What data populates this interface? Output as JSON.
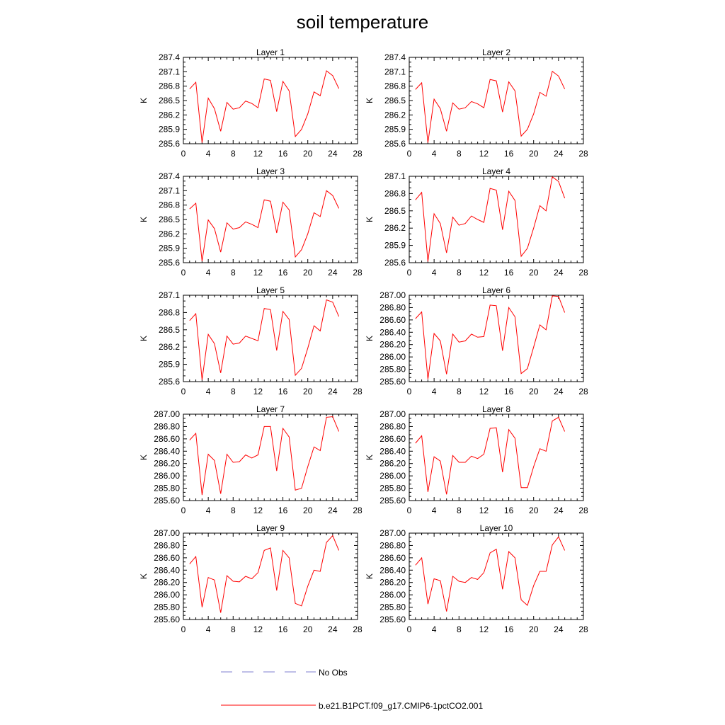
{
  "title": "soil temperature",
  "chart_data": {
    "type": "line",
    "layout": "5 rows x 2 columns",
    "x": [
      1,
      2,
      3,
      4,
      5,
      6,
      7,
      8,
      9,
      10,
      11,
      12,
      13,
      14,
      15,
      16,
      17,
      18,
      19,
      20,
      21,
      22,
      23,
      24,
      25
    ],
    "xlim": [
      0,
      28
    ],
    "xticks": [
      "0",
      "4",
      "8",
      "12",
      "16",
      "20",
      "24",
      "28"
    ],
    "panels": [
      {
        "title": "Layer 1",
        "ylabel": "K",
        "ylim": [
          285.6,
          287.4
        ],
        "yticks": [
          "285.6",
          "285.9",
          "286.2",
          "286.5",
          "286.8",
          "287.1",
          "287.4"
        ],
        "values": [
          286.74,
          286.88,
          285.62,
          286.55,
          286.33,
          285.86,
          286.46,
          286.32,
          286.35,
          286.49,
          286.44,
          286.35,
          286.95,
          286.92,
          286.27,
          286.9,
          286.7,
          285.75,
          285.9,
          286.22,
          286.68,
          286.6,
          287.12,
          287.02,
          286.75
        ]
      },
      {
        "title": "Layer 2",
        "ylabel": "K",
        "ylim": [
          285.6,
          287.4
        ],
        "yticks": [
          "285.6",
          "285.9",
          "286.2",
          "286.5",
          "286.8",
          "287.1",
          "287.4"
        ],
        "values": [
          286.73,
          286.87,
          285.62,
          286.53,
          286.33,
          285.86,
          286.45,
          286.32,
          286.35,
          286.48,
          286.43,
          286.35,
          286.94,
          286.91,
          286.26,
          286.89,
          286.7,
          285.76,
          285.9,
          286.22,
          286.67,
          286.59,
          287.11,
          287.01,
          286.74
        ]
      },
      {
        "title": "Layer 3",
        "ylabel": "K",
        "ylim": [
          285.6,
          287.4
        ],
        "yticks": [
          "285.6",
          "285.9",
          "286.2",
          "286.5",
          "286.8",
          "287.1",
          "287.4"
        ],
        "values": [
          286.72,
          286.84,
          285.63,
          286.49,
          286.31,
          285.82,
          286.43,
          286.3,
          286.33,
          286.45,
          286.4,
          286.33,
          286.91,
          286.88,
          286.22,
          286.86,
          286.7,
          285.72,
          285.87,
          286.2,
          286.64,
          286.56,
          287.1,
          287.0,
          286.73
        ]
      },
      {
        "title": "Layer 4",
        "ylabel": "K",
        "ylim": [
          285.6,
          287.1
        ],
        "yticks": [
          "285.6",
          "285.9",
          "286.2",
          "286.5",
          "286.8",
          "287.1"
        ],
        "values": [
          286.69,
          286.82,
          285.62,
          286.45,
          286.28,
          285.77,
          286.39,
          286.25,
          286.28,
          286.41,
          286.35,
          286.3,
          286.89,
          286.86,
          286.17,
          286.84,
          286.68,
          285.71,
          285.85,
          286.2,
          286.59,
          286.5,
          287.09,
          287.01,
          286.72
        ]
      },
      {
        "title": "Layer 5",
        "ylabel": "K",
        "ylim": [
          285.6,
          287.1
        ],
        "yticks": [
          "285.6",
          "285.9",
          "286.2",
          "286.5",
          "286.8",
          "287.1"
        ],
        "values": [
          286.66,
          286.78,
          285.63,
          286.42,
          286.26,
          285.75,
          286.39,
          286.25,
          286.27,
          286.39,
          286.35,
          286.31,
          286.87,
          286.85,
          286.14,
          286.82,
          286.68,
          285.71,
          285.83,
          286.18,
          286.57,
          286.48,
          287.02,
          286.98,
          286.73
        ]
      },
      {
        "title": "Layer 6",
        "ylabel": "K",
        "ylim": [
          285.6,
          287.0
        ],
        "yticks": [
          "285.60",
          "285.80",
          "286.00",
          "286.20",
          "286.40",
          "286.60",
          "286.80",
          "287.00"
        ],
        "values": [
          286.62,
          286.73,
          285.64,
          286.38,
          286.26,
          285.72,
          286.37,
          286.24,
          286.26,
          286.37,
          286.32,
          286.33,
          286.84,
          286.83,
          286.1,
          286.8,
          286.65,
          285.73,
          285.81,
          286.16,
          286.52,
          286.44,
          286.99,
          286.98,
          286.72
        ]
      },
      {
        "title": "Layer 7",
        "ylabel": "K",
        "ylim": [
          285.6,
          287.0
        ],
        "yticks": [
          "285.60",
          "285.80",
          "286.00",
          "286.20",
          "286.40",
          "286.60",
          "286.80",
          "287.00"
        ],
        "values": [
          286.58,
          286.69,
          285.69,
          286.35,
          286.25,
          285.71,
          286.35,
          286.22,
          286.23,
          286.34,
          286.29,
          286.34,
          286.8,
          286.8,
          286.08,
          286.77,
          286.63,
          285.77,
          285.8,
          286.15,
          286.47,
          286.41,
          286.95,
          286.96,
          286.72
        ]
      },
      {
        "title": "Layer 8",
        "ylabel": "K",
        "ylim": [
          285.6,
          287.0
        ],
        "yticks": [
          "285.60",
          "285.80",
          "286.00",
          "286.20",
          "286.40",
          "286.60",
          "286.80",
          "287.00"
        ],
        "values": [
          286.53,
          286.65,
          285.74,
          286.31,
          286.24,
          285.7,
          286.33,
          286.22,
          286.22,
          286.32,
          286.28,
          286.35,
          286.77,
          286.78,
          286.06,
          286.75,
          286.61,
          285.81,
          285.81,
          286.15,
          286.44,
          286.4,
          286.89,
          286.95,
          286.72
        ]
      },
      {
        "title": "Layer 9",
        "ylabel": "K",
        "ylim": [
          285.6,
          287.0
        ],
        "yticks": [
          "285.60",
          "285.80",
          "286.00",
          "286.20",
          "286.40",
          "286.60",
          "286.80",
          "287.00"
        ],
        "values": [
          286.5,
          286.62,
          285.8,
          286.28,
          286.24,
          285.71,
          286.31,
          286.22,
          286.21,
          286.3,
          286.26,
          286.36,
          286.72,
          286.76,
          286.07,
          286.72,
          286.6,
          285.86,
          285.82,
          286.14,
          286.4,
          286.38,
          286.85,
          286.96,
          286.72
        ]
      },
      {
        "title": "Layer 10",
        "ylabel": "K",
        "ylim": [
          285.6,
          287.0
        ],
        "yticks": [
          "285.60",
          "285.80",
          "286.00",
          "286.20",
          "286.40",
          "286.60",
          "286.80",
          "287.00"
        ],
        "values": [
          286.48,
          286.6,
          285.85,
          286.26,
          286.23,
          285.73,
          286.3,
          286.22,
          286.2,
          286.28,
          286.25,
          286.36,
          286.68,
          286.74,
          286.09,
          286.7,
          286.6,
          285.92,
          285.83,
          286.15,
          286.38,
          286.38,
          286.81,
          286.94,
          286.72
        ]
      }
    ],
    "legend": {
      "position": "bottom",
      "entries": [
        {
          "label": "No Obs",
          "style": "dashed",
          "color": "#7f7fd0"
        },
        {
          "label": "b.e21.B1PCT.f09_g17.CMIP6-1pctCO2.001",
          "style": "solid",
          "color": "#ff0000"
        }
      ]
    },
    "series_color": "#ff0000",
    "grid": false
  }
}
